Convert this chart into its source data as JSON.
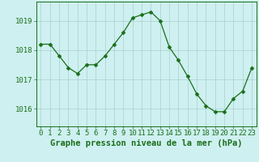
{
  "x": [
    0,
    1,
    2,
    3,
    4,
    5,
    6,
    7,
    8,
    9,
    10,
    11,
    12,
    13,
    14,
    15,
    16,
    17,
    18,
    19,
    20,
    21,
    22,
    23
  ],
  "y": [
    1018.2,
    1018.2,
    1017.8,
    1017.4,
    1017.2,
    1017.5,
    1017.5,
    1017.8,
    1018.2,
    1018.6,
    1019.1,
    1019.2,
    1019.3,
    1019.0,
    1018.1,
    1017.65,
    1017.1,
    1016.5,
    1016.1,
    1015.9,
    1015.9,
    1016.35,
    1016.6,
    1017.4
  ],
  "line_color": "#1a6e1a",
  "marker": "D",
  "marker_size": 2.5,
  "bg_color": "#cef0f0",
  "grid_color": "#aacfcf",
  "ylabel_ticks": [
    1016,
    1017,
    1018,
    1019
  ],
  "xlabel_label": "Graphe pression niveau de la mer (hPa)",
  "ylim": [
    1015.4,
    1019.65
  ],
  "xlim": [
    -0.5,
    23.5
  ],
  "tick_fontsize": 6.5,
  "xlabel_fontsize": 7.5
}
